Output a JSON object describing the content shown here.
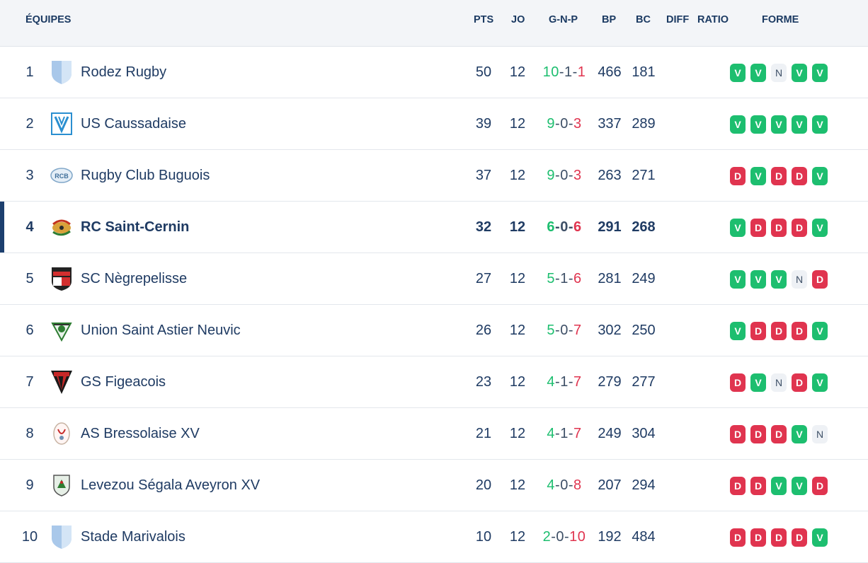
{
  "header": {
    "equipes": "ÉQUIPES",
    "pts": "PTS",
    "jo": "JO",
    "gnp": "G-N-P",
    "bp": "BP",
    "bc": "BC",
    "diff": "DIFF",
    "ratio": "RATIO",
    "forme": "FORME"
  },
  "colors": {
    "win": "#1dbe6f",
    "loss": "#e0344f",
    "draw_bg": "#eef1f5",
    "highlight": "#1c3f6e"
  },
  "rows": [
    {
      "rank": "1",
      "logo": "shield-light-blue-logo",
      "team": "Rodez Rugby",
      "pts": "50",
      "jo": "12",
      "g": "10",
      "n": "1",
      "p": "1",
      "bp": "466",
      "bc": "181",
      "form": [
        "V",
        "V",
        "N",
        "V",
        "V"
      ]
    },
    {
      "rank": "2",
      "logo": "shield-blue-white-logo",
      "team": "US Caussadaise",
      "pts": "39",
      "jo": "12",
      "g": "9",
      "n": "0",
      "p": "3",
      "bp": "337",
      "bc": "289",
      "form": [
        "V",
        "V",
        "V",
        "V",
        "V"
      ]
    },
    {
      "rank": "3",
      "logo": "rcb-badge-logo",
      "team": "Rugby Club Buguois",
      "pts": "37",
      "jo": "12",
      "g": "9",
      "n": "0",
      "p": "3",
      "bp": "263",
      "bc": "271",
      "form": [
        "D",
        "V",
        "D",
        "D",
        "V"
      ]
    },
    {
      "rank": "4",
      "logo": "saint-cernin-logo",
      "team": "RC Saint-Cernin",
      "pts": "32",
      "jo": "12",
      "g": "6",
      "n": "0",
      "p": "6",
      "bp": "291",
      "bc": "268",
      "form": [
        "V",
        "D",
        "D",
        "D",
        "V"
      ],
      "highlight": true
    },
    {
      "rank": "5",
      "logo": "negrepelisse-shield-logo",
      "team": "SC Nègrepelisse",
      "pts": "27",
      "jo": "12",
      "g": "5",
      "n": "1",
      "p": "6",
      "bp": "281",
      "bc": "249",
      "form": [
        "V",
        "V",
        "V",
        "N",
        "D"
      ]
    },
    {
      "rank": "6",
      "logo": "saint-astier-logo",
      "team": "Union Saint Astier Neuvic",
      "pts": "26",
      "jo": "12",
      "g": "5",
      "n": "0",
      "p": "7",
      "bp": "302",
      "bc": "250",
      "form": [
        "V",
        "D",
        "D",
        "D",
        "V"
      ]
    },
    {
      "rank": "7",
      "logo": "figeacois-shield-logo",
      "team": "GS Figeacois",
      "pts": "23",
      "jo": "12",
      "g": "4",
      "n": "1",
      "p": "7",
      "bp": "279",
      "bc": "277",
      "form": [
        "D",
        "V",
        "N",
        "D",
        "V"
      ]
    },
    {
      "rank": "8",
      "logo": "bressolaise-logo",
      "team": "AS Bressolaise XV",
      "pts": "21",
      "jo": "12",
      "g": "4",
      "n": "1",
      "p": "7",
      "bp": "249",
      "bc": "304",
      "form": [
        "D",
        "D",
        "D",
        "V",
        "N"
      ]
    },
    {
      "rank": "9",
      "logo": "levezou-shield-logo",
      "team": "Levezou Ségala Aveyron XV",
      "pts": "20",
      "jo": "12",
      "g": "4",
      "n": "0",
      "p": "8",
      "bp": "207",
      "bc": "294",
      "form": [
        "D",
        "D",
        "V",
        "V",
        "D"
      ]
    },
    {
      "rank": "10",
      "logo": "shield-light-blue-logo",
      "team": "Stade Marivalois",
      "pts": "10",
      "jo": "12",
      "g": "2",
      "n": "0",
      "p": "10",
      "bp": "192",
      "bc": "484",
      "form": [
        "D",
        "D",
        "D",
        "D",
        "V"
      ]
    }
  ]
}
